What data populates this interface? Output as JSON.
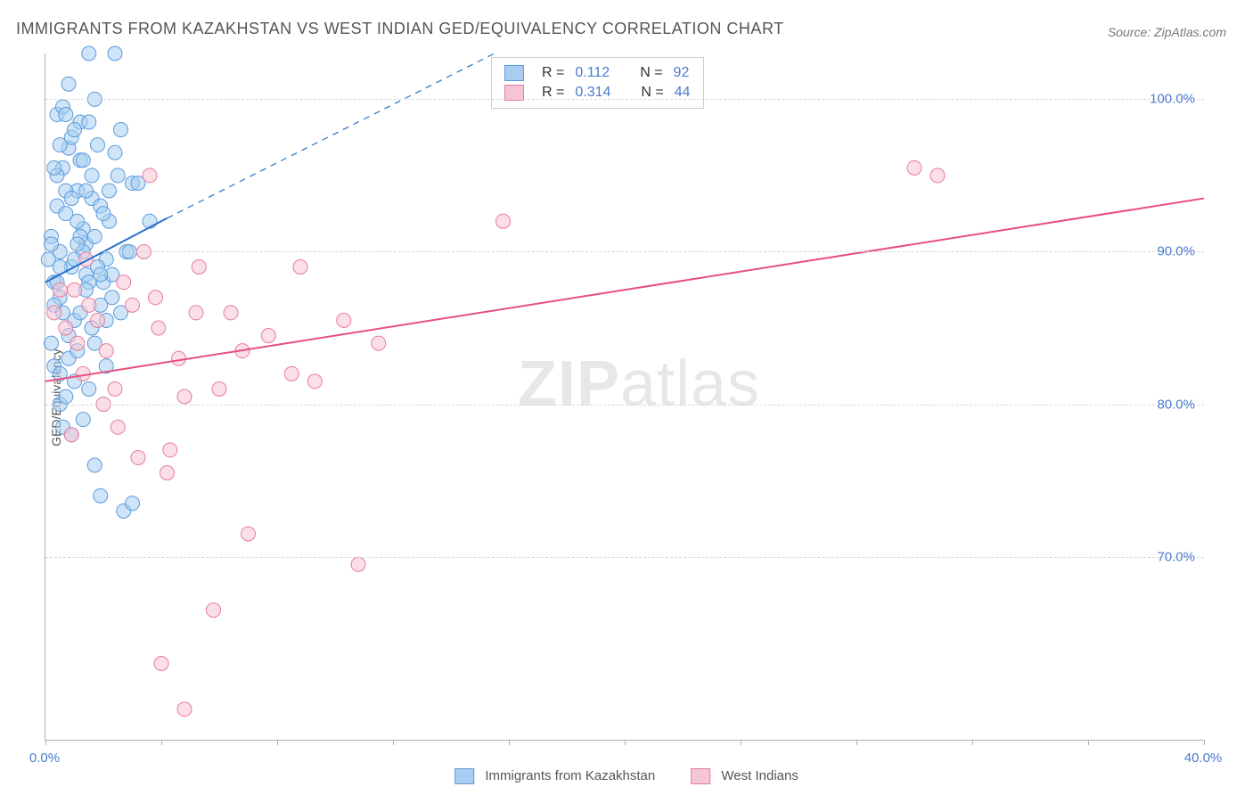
{
  "title": "IMMIGRANTS FROM KAZAKHSTAN VS WEST INDIAN GED/EQUIVALENCY CORRELATION CHART",
  "source": "Source: ZipAtlas.com",
  "ylabel": "GED/Equivalency",
  "watermark_bold": "ZIP",
  "watermark_light": "atlas",
  "chart": {
    "type": "scatter",
    "background_color": "#ffffff",
    "grid_color": "#d8d8d8",
    "axis_color": "#b0b0b0",
    "text_color": "#555555",
    "value_color": "#4a7bd0",
    "xlim": [
      0,
      40
    ],
    "ylim": [
      58,
      103
    ],
    "yticks": [
      70,
      80,
      90,
      100
    ],
    "ytick_labels": [
      "70.0%",
      "80.0%",
      "90.0%",
      "100.0%"
    ],
    "xticks_minor": [
      0,
      4,
      8,
      12,
      16,
      20,
      24,
      28,
      32,
      36,
      40
    ],
    "xtick_labels": [
      {
        "x": 0,
        "label": "0.0%"
      },
      {
        "x": 40,
        "label": "40.0%"
      }
    ],
    "marker_radius": 8,
    "marker_opacity": 0.55,
    "line_width": 2
  },
  "series": [
    {
      "name": "Immigrants from Kazakhstan",
      "color_fill": "#a8cdf0",
      "color_stroke": "#5a9bde",
      "color_line": "#2a6fc9",
      "R": "0.112",
      "N": "92",
      "trend": {
        "x1": 0,
        "y1": 88.0,
        "x2": 4.2,
        "y2": 92.2
      },
      "trend_extension": {
        "x1": 4.2,
        "y1": 92.2,
        "x2": 15.5,
        "y2": 103.0
      },
      "points": [
        [
          0.1,
          89.5
        ],
        [
          0.2,
          91.0
        ],
        [
          0.3,
          88.0
        ],
        [
          0.4,
          93.0
        ],
        [
          0.5,
          90.0
        ],
        [
          0.6,
          95.5
        ],
        [
          0.4,
          99.0
        ],
        [
          0.5,
          87.0
        ],
        [
          0.7,
          92.5
        ],
        [
          0.8,
          96.8
        ],
        [
          0.9,
          89.0
        ],
        [
          1.0,
          85.5
        ],
        [
          1.1,
          94.0
        ],
        [
          1.2,
          98.5
        ],
        [
          1.3,
          91.5
        ],
        [
          1.4,
          88.5
        ],
        [
          1.5,
          103.0
        ],
        [
          1.6,
          93.5
        ],
        [
          0.2,
          84.0
        ],
        [
          0.3,
          82.5
        ],
        [
          0.5,
          80.0
        ],
        [
          0.6,
          78.5
        ],
        [
          0.8,
          83.0
        ],
        [
          1.0,
          81.5
        ],
        [
          1.2,
          86.0
        ],
        [
          1.4,
          90.5
        ],
        [
          1.6,
          95.0
        ],
        [
          1.8,
          97.0
        ],
        [
          2.0,
          88.0
        ],
        [
          2.2,
          92.0
        ],
        [
          2.4,
          103.0
        ],
        [
          2.6,
          98.0
        ],
        [
          2.8,
          90.0
        ],
        [
          3.0,
          94.5
        ],
        [
          1.7,
          76.0
        ],
        [
          1.9,
          74.0
        ],
        [
          0.3,
          86.5
        ],
        [
          0.5,
          89.0
        ],
        [
          0.7,
          94.0
        ],
        [
          0.9,
          97.5
        ],
        [
          1.1,
          92.0
        ],
        [
          1.3,
          90.0
        ],
        [
          1.5,
          88.0
        ],
        [
          1.7,
          91.0
        ],
        [
          1.9,
          93.0
        ],
        [
          2.1,
          89.5
        ],
        [
          2.3,
          87.0
        ],
        [
          2.5,
          95.0
        ],
        [
          0.4,
          95.0
        ],
        [
          0.6,
          99.5
        ],
        [
          0.8,
          101.0
        ],
        [
          1.0,
          98.0
        ],
        [
          1.2,
          96.0
        ],
        [
          1.4,
          94.0
        ],
        [
          0.2,
          90.5
        ],
        [
          0.4,
          88.0
        ],
        [
          0.6,
          86.0
        ],
        [
          0.8,
          84.5
        ],
        [
          1.0,
          89.5
        ],
        [
          1.2,
          91.0
        ],
        [
          1.4,
          87.5
        ],
        [
          1.6,
          85.0
        ],
        [
          1.8,
          89.0
        ],
        [
          2.0,
          92.5
        ],
        [
          2.2,
          94.0
        ],
        [
          2.4,
          96.5
        ],
        [
          0.5,
          82.0
        ],
        [
          0.7,
          80.5
        ],
        [
          0.9,
          78.0
        ],
        [
          1.1,
          83.5
        ],
        [
          1.3,
          79.0
        ],
        [
          1.5,
          81.0
        ],
        [
          1.7,
          84.0
        ],
        [
          1.9,
          86.5
        ],
        [
          2.1,
          82.5
        ],
        [
          2.3,
          88.5
        ],
        [
          0.3,
          95.5
        ],
        [
          0.5,
          97.0
        ],
        [
          0.7,
          99.0
        ],
        [
          0.9,
          93.5
        ],
        [
          1.1,
          90.5
        ],
        [
          1.3,
          96.0
        ],
        [
          1.5,
          98.5
        ],
        [
          1.7,
          100.0
        ],
        [
          1.9,
          88.5
        ],
        [
          2.1,
          85.5
        ],
        [
          2.6,
          86.0
        ],
        [
          2.9,
          90.0
        ],
        [
          3.2,
          94.5
        ],
        [
          3.6,
          92.0
        ],
        [
          2.7,
          73.0
        ],
        [
          3.0,
          73.5
        ]
      ]
    },
    {
      "name": "West Indians",
      "color_fill": "#f6c5d4",
      "color_stroke": "#e77ba0",
      "color_line": "#e84e7e",
      "R": "0.314",
      "N": "44",
      "trend": {
        "x1": 0,
        "y1": 81.5,
        "x2": 40,
        "y2": 93.5
      },
      "points": [
        [
          0.3,
          86.0
        ],
        [
          0.5,
          87.5
        ],
        [
          0.7,
          85.0
        ],
        [
          0.9,
          78.0
        ],
        [
          1.1,
          84.0
        ],
        [
          1.3,
          82.0
        ],
        [
          1.5,
          86.5
        ],
        [
          1.8,
          85.5
        ],
        [
          2.1,
          83.5
        ],
        [
          2.4,
          81.0
        ],
        [
          2.7,
          88.0
        ],
        [
          3.0,
          86.5
        ],
        [
          3.4,
          90.0
        ],
        [
          3.8,
          87.0
        ],
        [
          4.3,
          77.0
        ],
        [
          4.8,
          80.5
        ],
        [
          5.3,
          89.0
        ],
        [
          4.0,
          63.0
        ],
        [
          4.8,
          60.0
        ],
        [
          5.8,
          66.5
        ],
        [
          6.4,
          86.0
        ],
        [
          7.0,
          71.5
        ],
        [
          7.7,
          84.5
        ],
        [
          8.5,
          82.0
        ],
        [
          8.8,
          89.0
        ],
        [
          9.3,
          81.5
        ],
        [
          10.3,
          85.5
        ],
        [
          10.8,
          69.5
        ],
        [
          11.5,
          84.0
        ],
        [
          15.8,
          92.0
        ],
        [
          30.0,
          95.5
        ],
        [
          30.8,
          95.0
        ],
        [
          2.0,
          80.0
        ],
        [
          2.5,
          78.5
        ],
        [
          3.2,
          76.5
        ],
        [
          3.9,
          85.0
        ],
        [
          4.6,
          83.0
        ],
        [
          5.2,
          86.0
        ],
        [
          6.0,
          81.0
        ],
        [
          6.8,
          83.5
        ],
        [
          1.0,
          87.5
        ],
        [
          1.4,
          89.5
        ],
        [
          3.6,
          95.0
        ],
        [
          4.2,
          75.5
        ]
      ]
    }
  ],
  "stats_box": {
    "rows": [
      {
        "R_label": "R  =",
        "R": "0.112",
        "N_label": "N  =",
        "N": "92"
      },
      {
        "R_label": "R  =",
        "R": "0.314",
        "N_label": "N  =",
        "N": "44"
      }
    ]
  },
  "bottom_legend": {
    "items": [
      {
        "label": "Immigrants from Kazakhstan"
      },
      {
        "label": "West Indians"
      }
    ]
  }
}
